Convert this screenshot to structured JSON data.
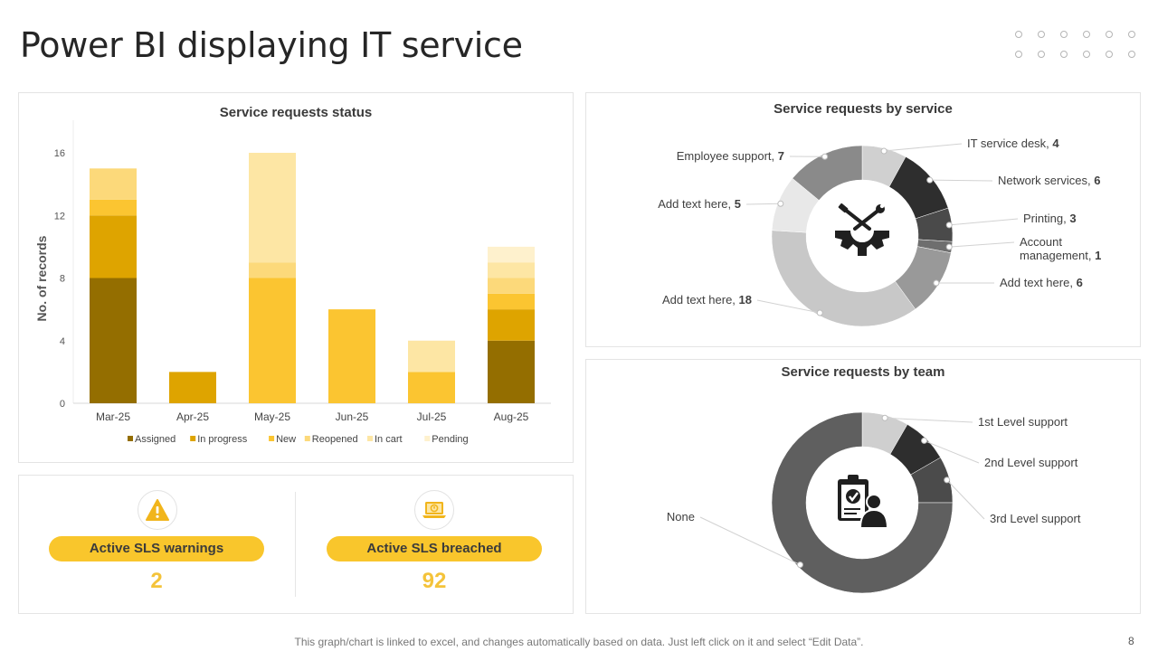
{
  "page": {
    "title": "Power BI displaying IT service",
    "footer": "This graph/chart is linked to excel, and changes automatically based on data. Just left click on it and select “Edit Data”.",
    "page_number": "8"
  },
  "kpis": [
    {
      "label": "Active SLS warnings",
      "value": "2",
      "icon": "warning-icon"
    },
    {
      "label": "Active SLS breached",
      "value": "92",
      "icon": "laptop-alert-icon"
    }
  ],
  "colors": {
    "Assigned": "#946e00",
    "In progress": "#dea400",
    "New": "#fbc531",
    "Reopened": "#fcd97a",
    "In cart": "#fde6a4",
    "Pending": "#fef1cd",
    "accent": "#f9c62c"
  },
  "chart_data": [
    {
      "type": "bar",
      "stacked": true,
      "title": "Service requests status",
      "xlabel": "",
      "ylabel": "No. of records",
      "ylim": [
        0,
        16
      ],
      "yticks": [
        0,
        4,
        8,
        12,
        16
      ],
      "categories": [
        "Mar-25",
        "Apr-25",
        "May-25",
        "Jun-25",
        "Jul-25",
        "Aug-25"
      ],
      "series": [
        {
          "name": "Assigned",
          "values": [
            8,
            0,
            0,
            0,
            0,
            4
          ]
        },
        {
          "name": "In progress",
          "values": [
            4,
            2,
            0,
            0,
            0,
            2
          ]
        },
        {
          "name": "New",
          "values": [
            1,
            0,
            8,
            6,
            2,
            1
          ]
        },
        {
          "name": "Reopened",
          "values": [
            2,
            0,
            1,
            0,
            0,
            1
          ]
        },
        {
          "name": "In cart",
          "values": [
            0,
            0,
            7,
            0,
            2,
            1
          ]
        },
        {
          "name": "Pending",
          "values": [
            0,
            0,
            0,
            0,
            0,
            1
          ]
        }
      ],
      "legend_position": "bottom"
    },
    {
      "type": "pie",
      "donut": true,
      "title": "Service requests by service",
      "center_icon": "gear-tools-icon",
      "slices": [
        {
          "label": "IT service desk",
          "value": 4,
          "color": "#d0d0d0"
        },
        {
          "label": "Network services",
          "value": 6,
          "color": "#2e2e2e"
        },
        {
          "label": "Printing",
          "value": 3,
          "color": "#4a4a4a"
        },
        {
          "label": "Account management",
          "value": 1,
          "color": "#6e6e6e"
        },
        {
          "label": "Add text here",
          "value": 6,
          "color": "#999999"
        },
        {
          "label": "Add text here",
          "value": 18,
          "color": "#c8c8c8"
        },
        {
          "label": "Add text here",
          "value": 5,
          "color": "#e8e8e8"
        },
        {
          "label": "Employee support",
          "value": 7,
          "color": "#8a8a8a"
        }
      ]
    },
    {
      "type": "pie",
      "donut": true,
      "title": "Service requests by team",
      "center_icon": "clipboard-person-icon",
      "slices": [
        {
          "label": "1st Level support",
          "value": 3,
          "color": "#cfcfcf"
        },
        {
          "label": "2nd Level support",
          "value": 3,
          "color": "#2e2e2e"
        },
        {
          "label": "3rd Level support",
          "value": 3,
          "color": "#4b4b4b"
        },
        {
          "label": "None",
          "value": 27,
          "color": "#5f5f5f"
        }
      ]
    }
  ]
}
